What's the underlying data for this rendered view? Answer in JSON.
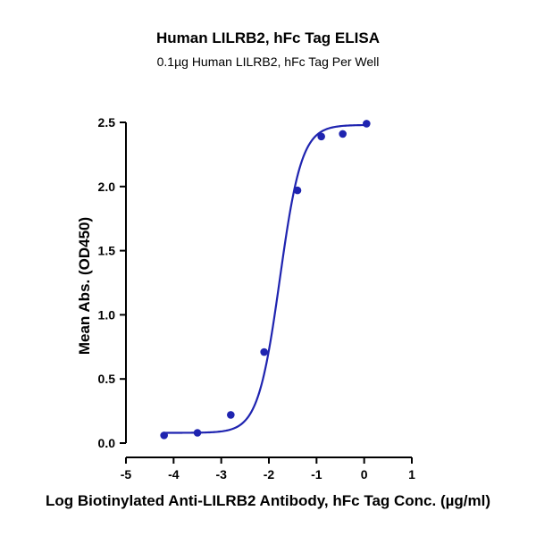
{
  "chart_data": {
    "type": "scatter",
    "title": "Human LILRB2, hFc Tag ELISA",
    "subtitle": "0.1µg Human LILRB2, hFc Tag Per Well",
    "xlabel": "Log Biotinylated Anti-LILRB2 Antibody, hFc Tag Conc. (µg/ml)",
    "ylabel": "Mean Abs. (OD450)",
    "xlim": [
      -5,
      1
    ],
    "ylim": [
      0,
      2.5
    ],
    "xticks": [
      "-5",
      "-4",
      "-3",
      "-2",
      "-1",
      "0",
      "1"
    ],
    "yticks": [
      "0.0",
      "0.5",
      "1.0",
      "1.5",
      "2.0",
      "2.5"
    ],
    "grid": false,
    "colors": {
      "series": "#1f24b0",
      "axis": "#000000"
    },
    "series": [
      {
        "x": [
          -4.2,
          -3.5,
          -2.8,
          -2.1,
          -1.4,
          -0.9,
          -0.45,
          0.05
        ],
        "y": [
          0.06,
          0.08,
          0.22,
          0.71,
          1.97,
          2.39,
          2.41,
          2.49
        ]
      }
    ],
    "fit": {
      "model": "4PL",
      "bottom": 0.08,
      "top": 2.48,
      "logEC50": -1.77,
      "hill": 1.9
    }
  }
}
